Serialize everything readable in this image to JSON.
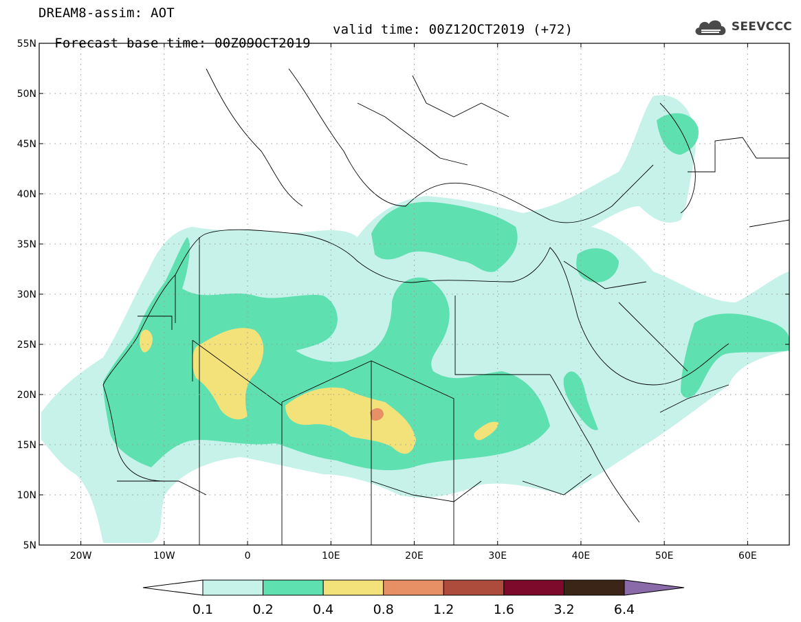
{
  "header": {
    "title_line1": "DREAM8-assim: AOT",
    "title_line2": "Forecast base time: 00Z09OCT2019",
    "valid_time": "valid time: 00Z12OCT2019 (+72)"
  },
  "logo": {
    "text": "SEEVCCC",
    "icon": "cloud-icon"
  },
  "map": {
    "region": "North Africa and Middle East",
    "lon_range": [
      -25,
      65
    ],
    "lat_range": [
      5,
      55
    ],
    "lat_labels": [
      "55N",
      "50N",
      "45N",
      "40N",
      "35N",
      "30N",
      "25N",
      "20N",
      "15N",
      "10N",
      "5N"
    ],
    "lon_labels": [
      "20W",
      "10W",
      "0",
      "10E",
      "20E",
      "30E",
      "40E",
      "50E",
      "60E"
    ],
    "grid": "dotted"
  },
  "colorbar": {
    "labels": [
      "0.1",
      "0.2",
      "0.4",
      "0.8",
      "1.2",
      "1.6",
      "3.2",
      "6.4"
    ],
    "colors": [
      "#c6f2ea",
      "#5fe0b1",
      "#f3e27a",
      "#e79066",
      "#ad4b3d",
      "#7d0a2a",
      "#3b2516",
      "#8a6aa8"
    ]
  }
}
